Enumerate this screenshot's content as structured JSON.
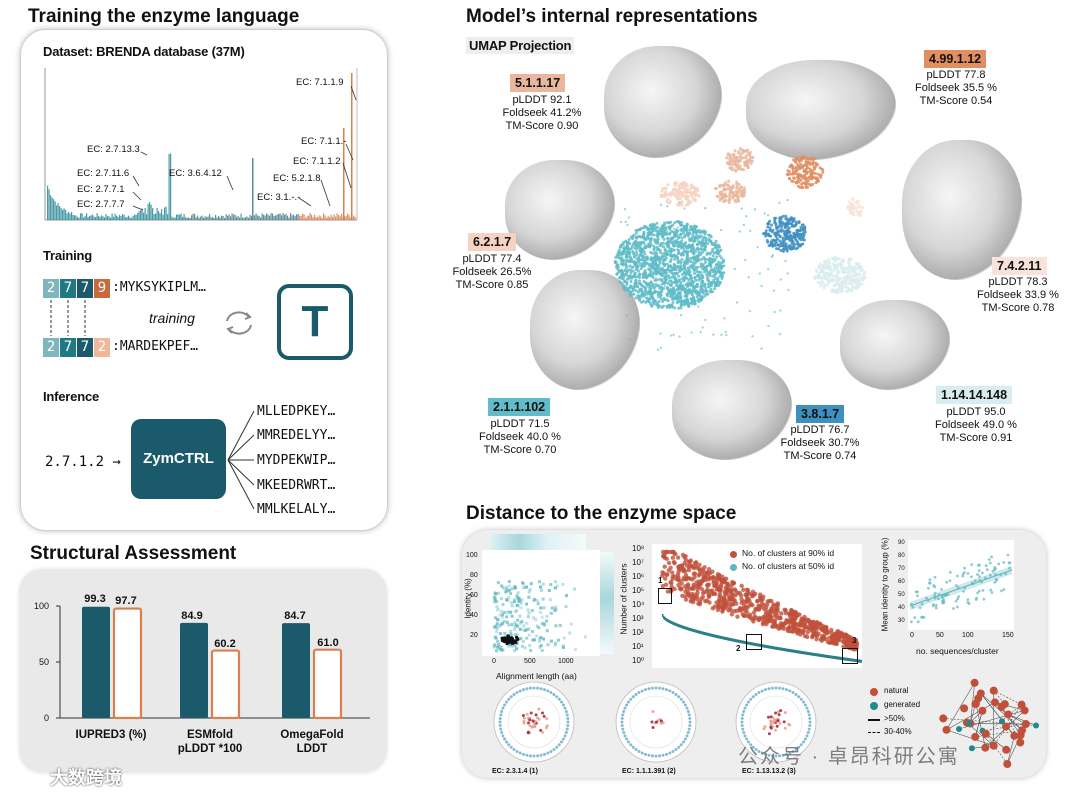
{
  "titles": {
    "training": "Training the enzyme language",
    "model": "Model’s internal representations",
    "structural": "Structural Assessment",
    "distance": "Distance to the enzyme space"
  },
  "dataset": {
    "title": "Dataset: BRENDA database (37M)",
    "ec_labels": [
      "EC: 7.1.1.9",
      "EC: 2.7.13.3",
      "EC: 2.7.11.6",
      "EC: 2.7.7.1",
      "EC: 2.7.7.7",
      "EC: 3.6.4.12",
      "EC: 7.1.1.-",
      "EC: 7.1.1.2",
      "EC: 5.2.1.8",
      "EC: 3.1.-.-"
    ]
  },
  "training": {
    "title": "Training",
    "row1_tokens": [
      "2",
      "7",
      "7",
      "9"
    ],
    "row1_seq": ":MYKSYKIPLM…",
    "row2_tokens": [
      "2",
      "7",
      "7",
      "2"
    ],
    "row2_seq": ":MARDEKPEF…",
    "loop_label": "training",
    "model_letter": "T"
  },
  "inference": {
    "title": "Inference",
    "input": "2.7.1.2 →",
    "model": "ZymCTRL",
    "outputs": [
      "MLLEDPKEY…",
      "MMREDELYY…",
      "MYDPEKWIP…",
      "MKEEDRWRT…",
      "MMLKELALY…"
    ]
  },
  "umap": {
    "title": "UMAP Projection",
    "clusters": [
      {
        "ec": "5.1.1.17",
        "plddt": "pLDDT  92.1",
        "foldseek": "Foldseek 41.2%",
        "tm": "TM-Score 0.90",
        "color": "#e9b79d"
      },
      {
        "ec": "4.99.1.12",
        "plddt": "pLDDT  77.8",
        "foldseek": "Foldseek 35.5 %",
        "tm": "TM-Score 0.54",
        "color": "#e18e63"
      },
      {
        "ec": "6.2.1.7",
        "plddt": "pLDDT  77.4",
        "foldseek": "Foldseek 26.5%",
        "tm": "TM-Score 0.85",
        "color": "#f6d2c2"
      },
      {
        "ec": "7.4.2.11",
        "plddt": "pLDDT  78.3",
        "foldseek": "Foldseek 33.9 %",
        "tm": "TM-Score 0.78",
        "color": "#f8e3da"
      },
      {
        "ec": "2.1.1.102",
        "plddt": "pLDDT  71.5",
        "foldseek": "Foldseek 40.0 %",
        "tm": "TM-Score 0.70",
        "color": "#5fbcc8"
      },
      {
        "ec": "3.8.1.7",
        "plddt": "pLDDT  76.7",
        "foldseek": "Foldseek 30.7%",
        "tm": "TM-Score 0.74",
        "color": "#3f8fbf"
      },
      {
        "ec": "1.14.14.148",
        "plddt": "pLDDT  95.0",
        "foldseek": "Foldseek 49.0 %",
        "tm": "TM-Score 0.91",
        "color": "#d9ecef"
      }
    ]
  },
  "structural": {
    "ticks": [
      "100",
      "50",
      "0"
    ],
    "groups": [
      {
        "label_line1": "IUPRED3 (%)",
        "label_line2": "",
        "natural": 99.3,
        "generated": 97.7,
        "natural_label": "99.3",
        "generated_label": "97.7"
      },
      {
        "label_line1": "ESMfold",
        "label_line2": "pLDDT *100",
        "natural": 84.9,
        "generated": 60.2,
        "natural_label": "84.9",
        "generated_label": "60.2"
      },
      {
        "label_line1": "OmegaFold",
        "label_line2": "LDDT",
        "natural": 84.7,
        "generated": 61.0,
        "natural_label": "84.7",
        "generated_label": "61.0"
      }
    ],
    "colors": {
      "natural": "#1a5a6b",
      "generated": "#d9804f"
    }
  },
  "distance": {
    "hist": {
      "ylabel": "Identity (%)",
      "xlabel": "Alignment length (aa)",
      "yticks": [
        "100",
        "80",
        "60",
        "40",
        "20"
      ],
      "xticks": [
        "0",
        "500",
        "1000"
      ]
    },
    "clusters": {
      "ylabel": "Number of clusters",
      "legend90": "No. of clusters at 90% id",
      "legend50": "No. of clusters at 50% id",
      "yticks": [
        "10⁸",
        "10⁷",
        "10⁶",
        "10⁵",
        "10⁴",
        "10³",
        "10²",
        "10¹",
        "10⁰"
      ],
      "box_labels": [
        "1",
        "2",
        "3"
      ]
    },
    "scatter": {
      "ylabel": "Mean identity to group (%)",
      "xlabel": "no. sequences/cluster",
      "yticks": [
        "90",
        "80",
        "70",
        "60",
        "50",
        "40",
        "30"
      ],
      "xticks": [
        "0",
        "50",
        "100",
        "150"
      ]
    },
    "circles": [
      "EC: 2.3.1.4 (1)",
      "EC: 1.1.1.391 (2)",
      "EC: 1.13.13.2 (3)"
    ],
    "network_legend": {
      "natural": "natural",
      "generated": "generated",
      "solid": ">50%",
      "dashed": "30-40%"
    }
  },
  "watermarks": {
    "left": "大数跨境",
    "right": "公众号 · 卓昂科研公寓"
  }
}
